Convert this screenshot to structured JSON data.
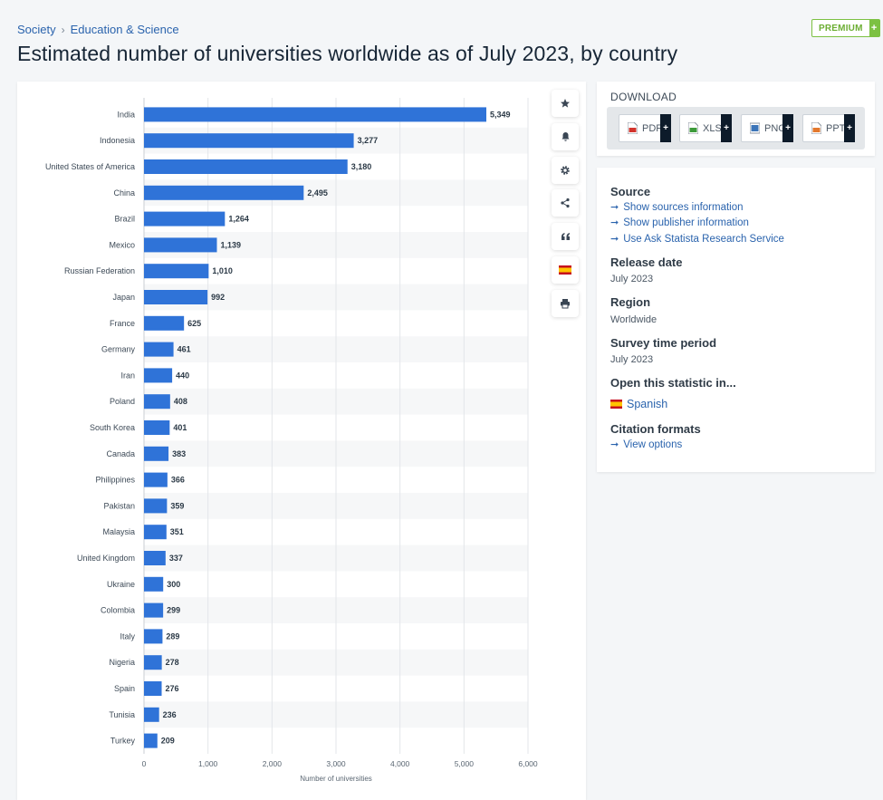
{
  "breadcrumb": {
    "items": [
      "Society",
      "Education & Science"
    ],
    "separator": "›"
  },
  "premium": {
    "label": "PREMIUM",
    "plus": "+"
  },
  "page_title": "Estimated number of universities worldwide as of July 2023, by country",
  "toolbar": {
    "icons": [
      "star-icon",
      "bell-icon",
      "gear-icon",
      "share-icon",
      "quote-icon",
      "spain-flag-icon",
      "print-icon"
    ]
  },
  "download": {
    "title": "DOWNLOAD",
    "buttons": [
      {
        "label": "PDF",
        "plus": "+",
        "color": "#d3342c"
      },
      {
        "label": "XLS",
        "plus": "+",
        "color": "#3d9a3a"
      },
      {
        "label": "PNG",
        "plus": "+",
        "color": "#3b74b8"
      },
      {
        "label": "PPT",
        "plus": "+",
        "color": "#e3782d"
      }
    ]
  },
  "info": {
    "source_heading": "Source",
    "source_links": [
      "Show sources information",
      "Show publisher information",
      "Use Ask Statista Research Service"
    ],
    "release_heading": "Release date",
    "release_value": "July 2023",
    "region_heading": "Region",
    "region_value": "Worldwide",
    "survey_heading": "Survey time period",
    "survey_value": "July 2023",
    "open_heading": "Open this statistic in...",
    "open_language": "Spanish",
    "citation_heading": "Citation formats",
    "citation_link": "View options",
    "link_arrow": "➞"
  },
  "colors": {
    "bar": "#2f73d8",
    "accent_link": "#2a63ad",
    "premium": "#7cc142"
  },
  "chart_data": {
    "type": "bar",
    "orientation": "horizontal",
    "title": "",
    "xlabel": "Number of universities",
    "ylabel": "",
    "xlim": [
      0,
      6000
    ],
    "xticks": [
      0,
      1000,
      2000,
      3000,
      4000,
      5000,
      6000
    ],
    "xtick_labels": [
      "0",
      "1,000",
      "2,000",
      "3,000",
      "4,000",
      "5,000",
      "6,000"
    ],
    "grid": true,
    "categories": [
      "India",
      "Indonesia",
      "United States of America",
      "China",
      "Brazil",
      "Mexico",
      "Russian Federation",
      "Japan",
      "France",
      "Germany",
      "Iran",
      "Poland",
      "South Korea",
      "Canada",
      "Philippines",
      "Pakistan",
      "Malaysia",
      "United Kingdom",
      "Ukraine",
      "Colombia",
      "Italy",
      "Nigeria",
      "Spain",
      "Tunisia",
      "Turkey"
    ],
    "values": [
      5349,
      3277,
      3180,
      2495,
      1264,
      1139,
      1010,
      992,
      625,
      461,
      440,
      408,
      401,
      383,
      366,
      359,
      351,
      337,
      300,
      299,
      289,
      278,
      276,
      236,
      209
    ],
    "value_labels": [
      "5,349",
      "3,277",
      "3,180",
      "2,495",
      "1,264",
      "1,139",
      "1,010",
      "992",
      "625",
      "461",
      "440",
      "408",
      "401",
      "383",
      "366",
      "359",
      "351",
      "337",
      "300",
      "299",
      "289",
      "278",
      "276",
      "236",
      "209"
    ]
  }
}
